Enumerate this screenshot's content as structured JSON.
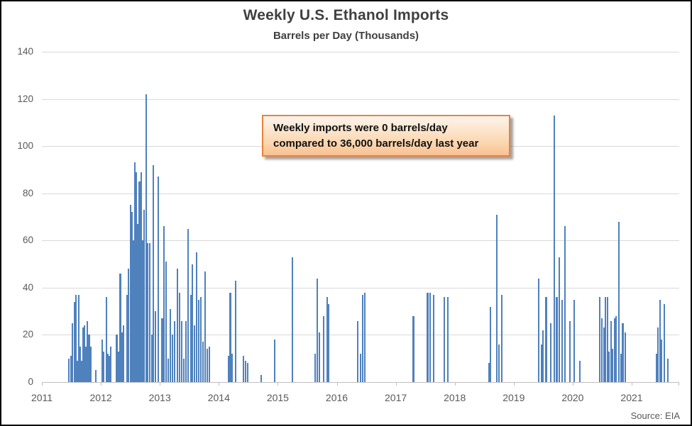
{
  "chart": {
    "title": "Weekly U.S. Ethanol Imports",
    "subtitle": "Barrels per Day (Thousands)",
    "source": "Source: EIA",
    "annotation": {
      "line1": "Weekly imports were 0 barrels/day",
      "line2": "compared to 36,000 barrels/day last year"
    },
    "colors": {
      "bar": "#4F81BD",
      "gridline": "#D9D9D9",
      "axis_line": "#BFBFBF",
      "tick": "#BFBFBF",
      "label": "#595959",
      "title": "#3F3F3F",
      "annotation_border": "#E8833A"
    }
  },
  "chart_data": {
    "type": "bar",
    "title": "Weekly U.S. Ethanol Imports",
    "subtitle": "Barrels per Day (Thousands)",
    "xlabel": "",
    "ylabel": "Barrels per Day (Thousands)",
    "x_axis": {
      "min": 2011,
      "max": 2021.8,
      "tick_years": [
        2011,
        2012,
        2013,
        2014,
        2015,
        2016,
        2017,
        2018,
        2019,
        2020,
        2021
      ]
    },
    "y_axis": {
      "min": 0,
      "max": 140,
      "step": 20,
      "tick_labels": [
        "0",
        "20",
        "40",
        "60",
        "80",
        "100",
        "120",
        "140"
      ]
    },
    "grid": true,
    "legend": "none",
    "points": [
      [
        2011.46,
        10
      ],
      [
        2011.49,
        11
      ],
      [
        2011.52,
        25
      ],
      [
        2011.55,
        34
      ],
      [
        2011.575,
        37
      ],
      [
        2011.6,
        9
      ],
      [
        2011.625,
        37
      ],
      [
        2011.65,
        15
      ],
      [
        2011.675,
        9
      ],
      [
        2011.7,
        23
      ],
      [
        2011.725,
        24
      ],
      [
        2011.75,
        15
      ],
      [
        2011.775,
        26
      ],
      [
        2011.8,
        20
      ],
      [
        2011.83,
        15
      ],
      [
        2011.91,
        5
      ],
      [
        2012.02,
        18
      ],
      [
        2012.045,
        13
      ],
      [
        2012.09,
        36
      ],
      [
        2012.12,
        12
      ],
      [
        2012.145,
        11
      ],
      [
        2012.17,
        15
      ],
      [
        2012.27,
        20
      ],
      [
        2012.295,
        13
      ],
      [
        2012.33,
        46
      ],
      [
        2012.36,
        21
      ],
      [
        2012.385,
        24
      ],
      [
        2012.44,
        37
      ],
      [
        2012.465,
        48
      ],
      [
        2012.5,
        75
      ],
      [
        2012.525,
        72
      ],
      [
        2012.55,
        60
      ],
      [
        2012.575,
        93
      ],
      [
        2012.6,
        89
      ],
      [
        2012.63,
        67
      ],
      [
        2012.655,
        85
      ],
      [
        2012.685,
        89
      ],
      [
        2012.71,
        60
      ],
      [
        2012.735,
        73
      ],
      [
        2012.77,
        122
      ],
      [
        2012.795,
        59
      ],
      [
        2012.825,
        59
      ],
      [
        2012.86,
        20
      ],
      [
        2012.89,
        92
      ],
      [
        2012.925,
        30
      ],
      [
        2012.97,
        87
      ],
      [
        2013.04,
        27
      ],
      [
        2013.075,
        66
      ],
      [
        2013.11,
        51
      ],
      [
        2013.145,
        10
      ],
      [
        2013.18,
        31
      ],
      [
        2013.21,
        20
      ],
      [
        2013.25,
        26
      ],
      [
        2013.3,
        48
      ],
      [
        2013.33,
        38
      ],
      [
        2013.37,
        26
      ],
      [
        2013.405,
        10
      ],
      [
        2013.44,
        26
      ],
      [
        2013.48,
        65
      ],
      [
        2013.525,
        37
      ],
      [
        2013.555,
        50
      ],
      [
        2013.59,
        24
      ],
      [
        2013.625,
        55
      ],
      [
        2013.66,
        35
      ],
      [
        2013.695,
        36
      ],
      [
        2013.73,
        17
      ],
      [
        2013.765,
        47
      ],
      [
        2013.8,
        14
      ],
      [
        2013.835,
        15
      ],
      [
        2014.17,
        11
      ],
      [
        2014.195,
        38
      ],
      [
        2014.22,
        12
      ],
      [
        2014.29,
        43
      ],
      [
        2014.42,
        11
      ],
      [
        2014.45,
        9
      ],
      [
        2014.49,
        8
      ],
      [
        2014.72,
        3
      ],
      [
        2014.95,
        18
      ],
      [
        2015.25,
        53
      ],
      [
        2015.63,
        12
      ],
      [
        2015.67,
        44
      ],
      [
        2015.71,
        21
      ],
      [
        2015.78,
        28
      ],
      [
        2015.835,
        36
      ],
      [
        2015.865,
        33
      ],
      [
        2016.35,
        26
      ],
      [
        2016.4,
        12
      ],
      [
        2016.44,
        37
      ],
      [
        2016.47,
        38
      ],
      [
        2017.3,
        28
      ],
      [
        2017.54,
        38
      ],
      [
        2017.58,
        38
      ],
      [
        2017.64,
        37
      ],
      [
        2017.82,
        36
      ],
      [
        2017.88,
        36
      ],
      [
        2018.585,
        8
      ],
      [
        2018.61,
        32
      ],
      [
        2018.71,
        71
      ],
      [
        2018.755,
        16
      ],
      [
        2018.8,
        37
      ],
      [
        2019.42,
        44
      ],
      [
        2019.47,
        16
      ],
      [
        2019.5,
        22
      ],
      [
        2019.55,
        36
      ],
      [
        2019.63,
        25
      ],
      [
        2019.69,
        113
      ],
      [
        2019.73,
        36
      ],
      [
        2019.77,
        53
      ],
      [
        2019.82,
        35
      ],
      [
        2019.87,
        66
      ],
      [
        2019.95,
        26
      ],
      [
        2020.02,
        35
      ],
      [
        2020.12,
        9
      ],
      [
        2020.46,
        36
      ],
      [
        2020.5,
        27
      ],
      [
        2020.53,
        23
      ],
      [
        2020.56,
        36
      ],
      [
        2020.59,
        36
      ],
      [
        2020.62,
        13
      ],
      [
        2020.65,
        26
      ],
      [
        2020.68,
        14
      ],
      [
        2020.71,
        27
      ],
      [
        2020.74,
        28
      ],
      [
        2020.78,
        68
      ],
      [
        2020.82,
        12
      ],
      [
        2020.85,
        25
      ],
      [
        2020.89,
        21
      ],
      [
        2021.42,
        12
      ],
      [
        2021.45,
        23
      ],
      [
        2021.48,
        35
      ],
      [
        2021.51,
        18
      ],
      [
        2021.55,
        33
      ],
      [
        2021.61,
        10
      ]
    ]
  }
}
